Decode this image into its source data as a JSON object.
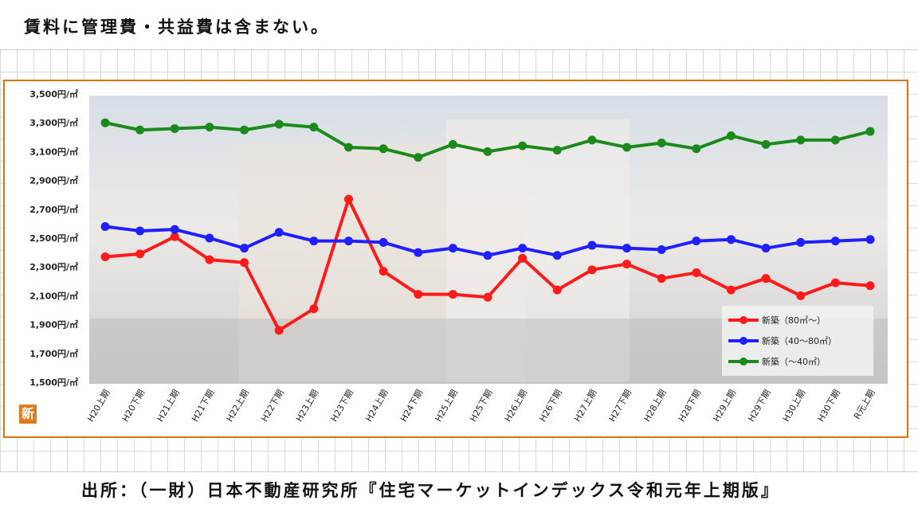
{
  "header": {
    "note": "賃料に管理費・共益費は含まない。"
  },
  "footer": {
    "source": "出所：（一財）日本不動産研究所『住宅マーケットインデックス令和元年上期版』"
  },
  "logo": {
    "text": "新"
  },
  "colors": {
    "frame": "#d9730b",
    "red": "#ff1a1a",
    "blue": "#1f1fff",
    "green": "#1a8a1a"
  },
  "chart_data": {
    "type": "line",
    "title": "",
    "xlabel": "",
    "ylabel": "",
    "ylim": [
      1500,
      3500
    ],
    "yticks": [
      1500,
      1700,
      1900,
      2100,
      2300,
      2500,
      2700,
      2900,
      3100,
      3300,
      3500
    ],
    "ytick_labels": [
      "1,500円/㎡",
      "1,700円/㎡",
      "1,900円/㎡",
      "2,100円/㎡",
      "2,300円/㎡",
      "2,500円/㎡",
      "2,700円/㎡",
      "2,900円/㎡",
      "3,100円/㎡",
      "3,300円/㎡",
      "3,500円/㎡"
    ],
    "categories": [
      "H20上期",
      "H20下期",
      "H21上期",
      "H21下期",
      "H22上期",
      "H22下期",
      "H23上期",
      "H23下期",
      "H24上期",
      "H24下期",
      "H25上期",
      "H25下期",
      "H26上期",
      "H26下期",
      "H27上期",
      "H27下期",
      "H28上期",
      "H28下期",
      "H29上期",
      "H29下期",
      "H30上期",
      "H30下期",
      "R元上期"
    ],
    "legend_position": "bottom-right",
    "series": [
      {
        "name": "新築（80㎡～）",
        "color": "#ff1a1a",
        "values": [
          2370,
          2390,
          2510,
          2350,
          2330,
          1860,
          2010,
          2770,
          2270,
          2110,
          2110,
          2090,
          2360,
          2140,
          2280,
          2320,
          2220,
          2260,
          2140,
          2220,
          2100,
          2190,
          2170
        ]
      },
      {
        "name": "新築（40～80㎡）",
        "color": "#1f1fff",
        "values": [
          2580,
          2550,
          2560,
          2500,
          2430,
          2540,
          2480,
          2480,
          2470,
          2400,
          2430,
          2380,
          2430,
          2380,
          2450,
          2430,
          2420,
          2480,
          2490,
          2430,
          2470,
          2480,
          2490
        ]
      },
      {
        "name": "新築（～40㎡）",
        "color": "#1a8a1a",
        "values": [
          3300,
          3250,
          3260,
          3270,
          3250,
          3290,
          3270,
          3130,
          3120,
          3060,
          3150,
          3100,
          3140,
          3110,
          3180,
          3130,
          3160,
          3120,
          3210,
          3150,
          3180,
          3180,
          3240
        ]
      }
    ]
  }
}
